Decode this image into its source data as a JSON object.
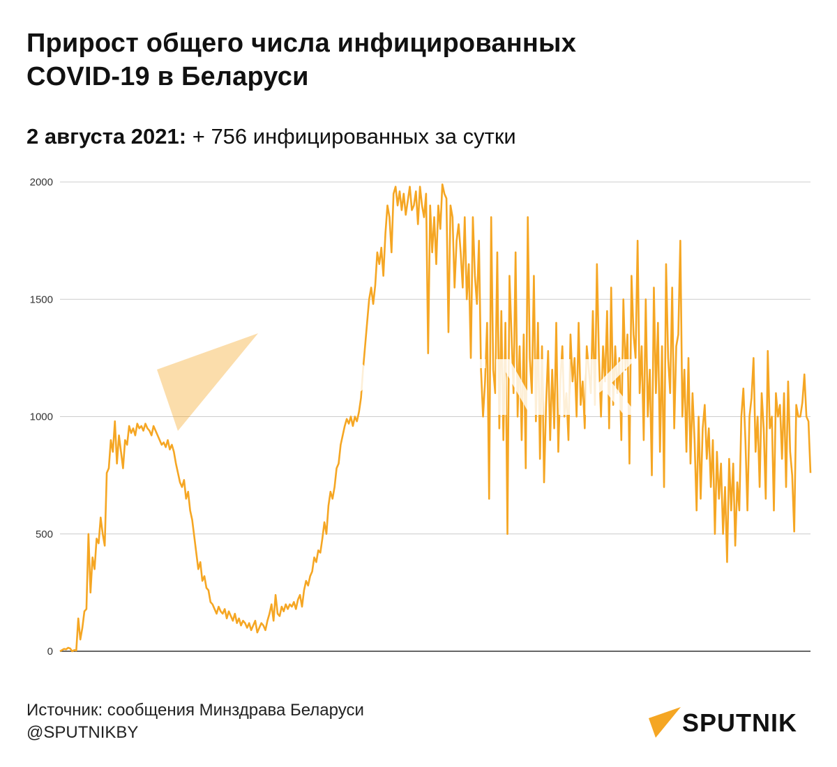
{
  "header": {
    "title_line1": "Прирост общего числа инфицированных",
    "title_line2": "COVID-19 в Беларуси",
    "subtitle_date": "2 августа 2021:",
    "subtitle_rest": " + 756 инфицированных за сутки"
  },
  "footer": {
    "source": "Источник: сообщения Минздрава Беларуси",
    "handle": "@SPUTNIKBY"
  },
  "brand": {
    "logo_text": "SPUTNIK",
    "watermark_text": "SPUTNIK",
    "accent_color": "#f5a623"
  },
  "chart_data": {
    "type": "line",
    "title": "",
    "xlabel": "",
    "ylabel": "",
    "ylim": [
      0,
      2000
    ],
    "yticks": [
      0,
      500,
      1000,
      1500,
      2000
    ],
    "grid": true,
    "series": [
      {
        "color": "#f5a623",
        "values": [
          0,
          5,
          10,
          8,
          15,
          12,
          0,
          5,
          3,
          140,
          50,
          100,
          170,
          180,
          500,
          250,
          400,
          350,
          480,
          460,
          570,
          500,
          450,
          760,
          780,
          900,
          850,
          980,
          800,
          920,
          850,
          780,
          900,
          880,
          960,
          930,
          950,
          920,
          970,
          950,
          960,
          940,
          970,
          950,
          940,
          920,
          960,
          940,
          920,
          900,
          880,
          890,
          870,
          900,
          860,
          880,
          850,
          800,
          760,
          720,
          700,
          730,
          650,
          680,
          600,
          560,
          490,
          420,
          350,
          380,
          300,
          320,
          270,
          260,
          210,
          200,
          180,
          160,
          190,
          170,
          160,
          180,
          140,
          170,
          150,
          130,
          160,
          120,
          140,
          110,
          130,
          120,
          100,
          120,
          90,
          110,
          130,
          80,
          100,
          120,
          110,
          90,
          130,
          160,
          200,
          130,
          240,
          160,
          150,
          190,
          170,
          200,
          180,
          200,
          190,
          210,
          180,
          220,
          240,
          190,
          260,
          300,
          280,
          320,
          340,
          400,
          380,
          430,
          420,
          480,
          550,
          500,
          620,
          680,
          650,
          700,
          780,
          800,
          880,
          920,
          960,
          990,
          970,
          1000,
          960,
          1000,
          980,
          1020,
          1080,
          1200,
          1300,
          1400,
          1500,
          1550,
          1480,
          1560,
          1700,
          1650,
          1720,
          1600,
          1780,
          1900,
          1850,
          1700,
          1950,
          1980,
          1900,
          1960,
          1880,
          1950,
          1860,
          1920,
          1980,
          1880,
          1900,
          1960,
          1820,
          1980,
          1900,
          1850,
          1950,
          1270,
          1900,
          1700,
          1850,
          1650,
          1900,
          1800,
          1990,
          1950,
          1930,
          1360,
          1900,
          1850,
          1550,
          1750,
          1820,
          1700,
          1550,
          1850,
          1500,
          1650,
          1250,
          1850,
          1600,
          1480,
          1750,
          1200,
          1000,
          1150,
          1400,
          650,
          1850,
          1200,
          1100,
          1700,
          950,
          1450,
          900,
          1400,
          500,
          1600,
          1350,
          1100,
          1700,
          1000,
          1300,
          900,
          1350,
          780,
          1850,
          1250,
          1100,
          1600,
          980,
          1400,
          820,
          1300,
          720,
          1050,
          1280,
          900,
          1200,
          950,
          1400,
          850,
          1150,
          1300,
          1000,
          1100,
          900,
          1350,
          1150,
          1250,
          1000,
          1400,
          1050,
          1150,
          950,
          1300,
          1200,
          1100,
          1450,
          1050,
          1650,
          1250,
          1000,
          1300,
          1150,
          1450,
          950,
          1550,
          1050,
          1300,
          1100,
          1250,
          900,
          1500,
          1200,
          1350,
          800,
          1600,
          1350,
          1250,
          1750,
          1100,
          1300,
          900,
          1500,
          1000,
          1200,
          750,
          1550,
          1100,
          1400,
          850,
          1300,
          700,
          1650,
          1250,
          1100,
          1550,
          950,
          1300,
          1350,
          1750,
          1000,
          1200,
          850,
          1250,
          800,
          1100,
          900,
          600,
          1000,
          650,
          950,
          1050,
          820,
          950,
          700,
          900,
          500,
          850,
          650,
          800,
          500,
          700,
          380,
          820,
          600,
          800,
          450,
          720,
          600,
          1000,
          1120,
          900,
          600,
          1000,
          1080,
          1250,
          850,
          1000,
          700,
          1100,
          950,
          650,
          1280,
          950,
          1000,
          600,
          1100,
          1000,
          1050,
          820,
          1100,
          700,
          1150,
          850,
          750,
          510,
          1050,
          1000,
          1000,
          1060,
          1180,
          1000,
          980,
          760
        ]
      }
    ]
  }
}
